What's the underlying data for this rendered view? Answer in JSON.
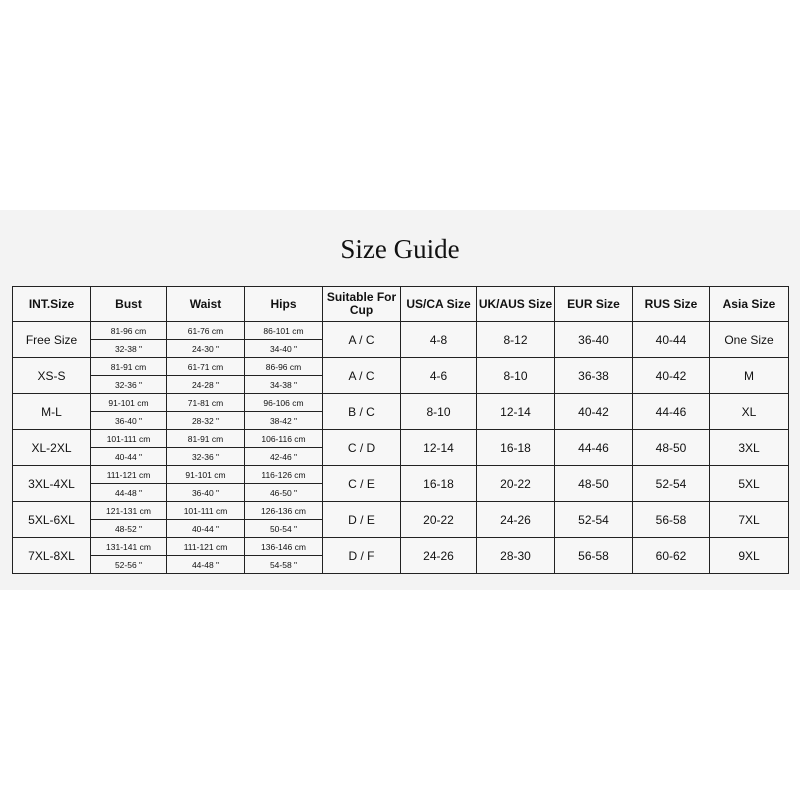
{
  "title": "Size Guide",
  "headers": [
    "INT.Size",
    "Bust",
    "Waist",
    "Hips",
    "Suitable For Cup",
    "US/CA Size",
    "UK/AUS Size",
    "EUR Size",
    "RUS Size",
    "Asia Size"
  ],
  "rows": [
    {
      "int": "Free Size",
      "bust_cm": "81-96 cm",
      "bust_in": "32-38 \"",
      "waist_cm": "61-76 cm",
      "waist_in": "24-30 \"",
      "hips_cm": "86-101 cm",
      "hips_in": "34-40 \"",
      "cup": "A / C",
      "us": "4-8",
      "uk": "8-12",
      "eur": "36-40",
      "rus": "40-44",
      "asia": "One Size"
    },
    {
      "int": "XS-S",
      "bust_cm": "81-91 cm",
      "bust_in": "32-36 \"",
      "waist_cm": "61-71 cm",
      "waist_in": "24-28 \"",
      "hips_cm": "86-96 cm",
      "hips_in": "34-38 \"",
      "cup": "A / C",
      "us": "4-6",
      "uk": "8-10",
      "eur": "36-38",
      "rus": "40-42",
      "asia": "M"
    },
    {
      "int": "M-L",
      "bust_cm": "91-101 cm",
      "bust_in": "36-40 \"",
      "waist_cm": "71-81 cm",
      "waist_in": "28-32 \"",
      "hips_cm": "96-106 cm",
      "hips_in": "38-42 \"",
      "cup": "B / C",
      "us": "8-10",
      "uk": "12-14",
      "eur": "40-42",
      "rus": "44-46",
      "asia": "XL"
    },
    {
      "int": "XL-2XL",
      "bust_cm": "101-111 cm",
      "bust_in": "40-44 \"",
      "waist_cm": "81-91 cm",
      "waist_in": "32-36 \"",
      "hips_cm": "106-116 cm",
      "hips_in": "42-46 \"",
      "cup": "C / D",
      "us": "12-14",
      "uk": "16-18",
      "eur": "44-46",
      "rus": "48-50",
      "asia": "3XL"
    },
    {
      "int": "3XL-4XL",
      "bust_cm": "111-121 cm",
      "bust_in": "44-48 \"",
      "waist_cm": "91-101 cm",
      "waist_in": "36-40 \"",
      "hips_cm": "116-126 cm",
      "hips_in": "46-50 \"",
      "cup": "C / E",
      "us": "16-18",
      "uk": "20-22",
      "eur": "48-50",
      "rus": "52-54",
      "asia": "5XL"
    },
    {
      "int": "5XL-6XL",
      "bust_cm": "121-131 cm",
      "bust_in": "48-52 \"",
      "waist_cm": "101-111 cm",
      "waist_in": "40-44 \"",
      "hips_cm": "126-136 cm",
      "hips_in": "50-54 \"",
      "cup": "D / E",
      "us": "20-22",
      "uk": "24-26",
      "eur": "52-54",
      "rus": "56-58",
      "asia": "7XL"
    },
    {
      "int": "7XL-8XL",
      "bust_cm": "131-141 cm",
      "bust_in": "52-56 \"",
      "waist_cm": "111-121 cm",
      "waist_in": "44-48 \"",
      "hips_cm": "136-146 cm",
      "hips_in": "54-58 \"",
      "cup": "D / F",
      "us": "24-26",
      "uk": "28-30",
      "eur": "56-58",
      "rus": "60-62",
      "asia": "9XL"
    }
  ]
}
